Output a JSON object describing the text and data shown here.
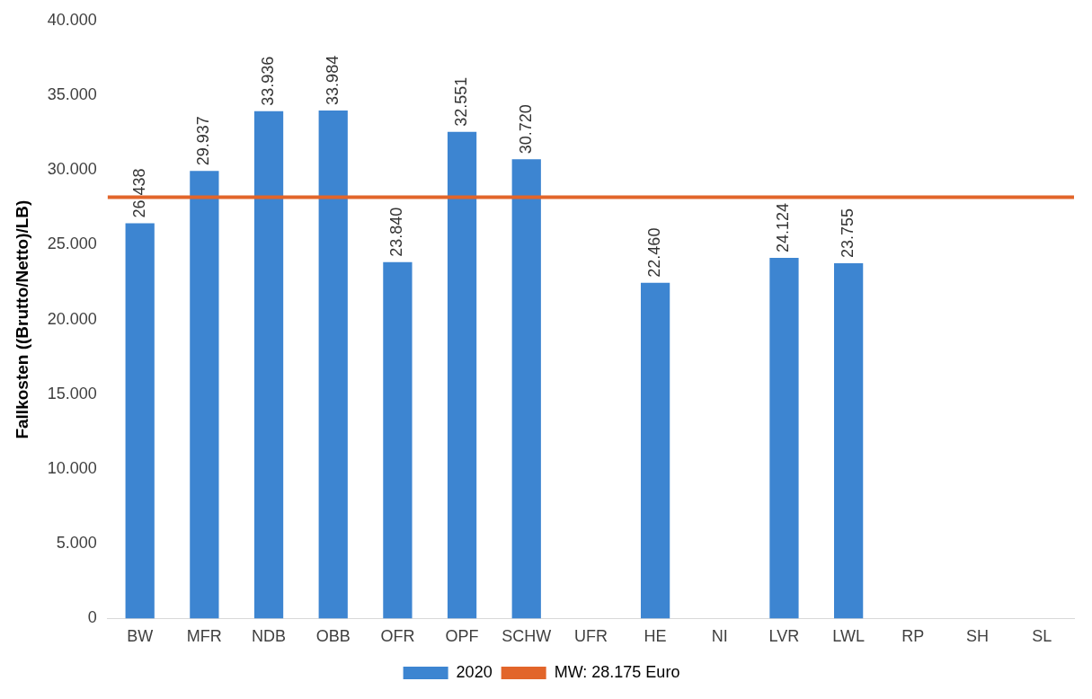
{
  "chart_data": {
    "type": "bar",
    "ylabel": "Fallkosten ((Brutto/Netto)/LB)",
    "categories": [
      "BW",
      "MFR",
      "NDB",
      "OBB",
      "OFR",
      "OPF",
      "SCHW",
      "UFR",
      "HE",
      "NI",
      "LVR",
      "LWL",
      "RP",
      "SH",
      "SL"
    ],
    "series": [
      {
        "name": "2020",
        "color": "#3d85d1",
        "values": [
          26438,
          29937,
          33936,
          33984,
          23840,
          32551,
          30720,
          null,
          22460,
          null,
          24124,
          23755,
          null,
          null,
          null
        ],
        "value_labels": [
          "26.438",
          "29.937",
          "33.936",
          "33.984",
          "23.840",
          "32.551",
          "30.720",
          null,
          "22.460",
          null,
          "24.124",
          "23.755",
          null,
          null,
          null
        ]
      }
    ],
    "ylim": [
      0,
      40000
    ],
    "yticks": [
      {
        "value": 0,
        "label": "0"
      },
      {
        "value": 5000,
        "label": "5.000"
      },
      {
        "value": 10000,
        "label": "10.000"
      },
      {
        "value": 15000,
        "label": "15.000"
      },
      {
        "value": 20000,
        "label": "20.000"
      },
      {
        "value": 25000,
        "label": "25.000"
      },
      {
        "value": 30000,
        "label": "30.000"
      },
      {
        "value": 35000,
        "label": "35.000"
      },
      {
        "value": 40000,
        "label": "40.000"
      }
    ],
    "ref_lines": [
      {
        "axis": "y",
        "value": 28175,
        "label": "MW: 28.175 Euro",
        "color": "#e2652a"
      }
    ],
    "legend": "bottom",
    "grid": false
  }
}
